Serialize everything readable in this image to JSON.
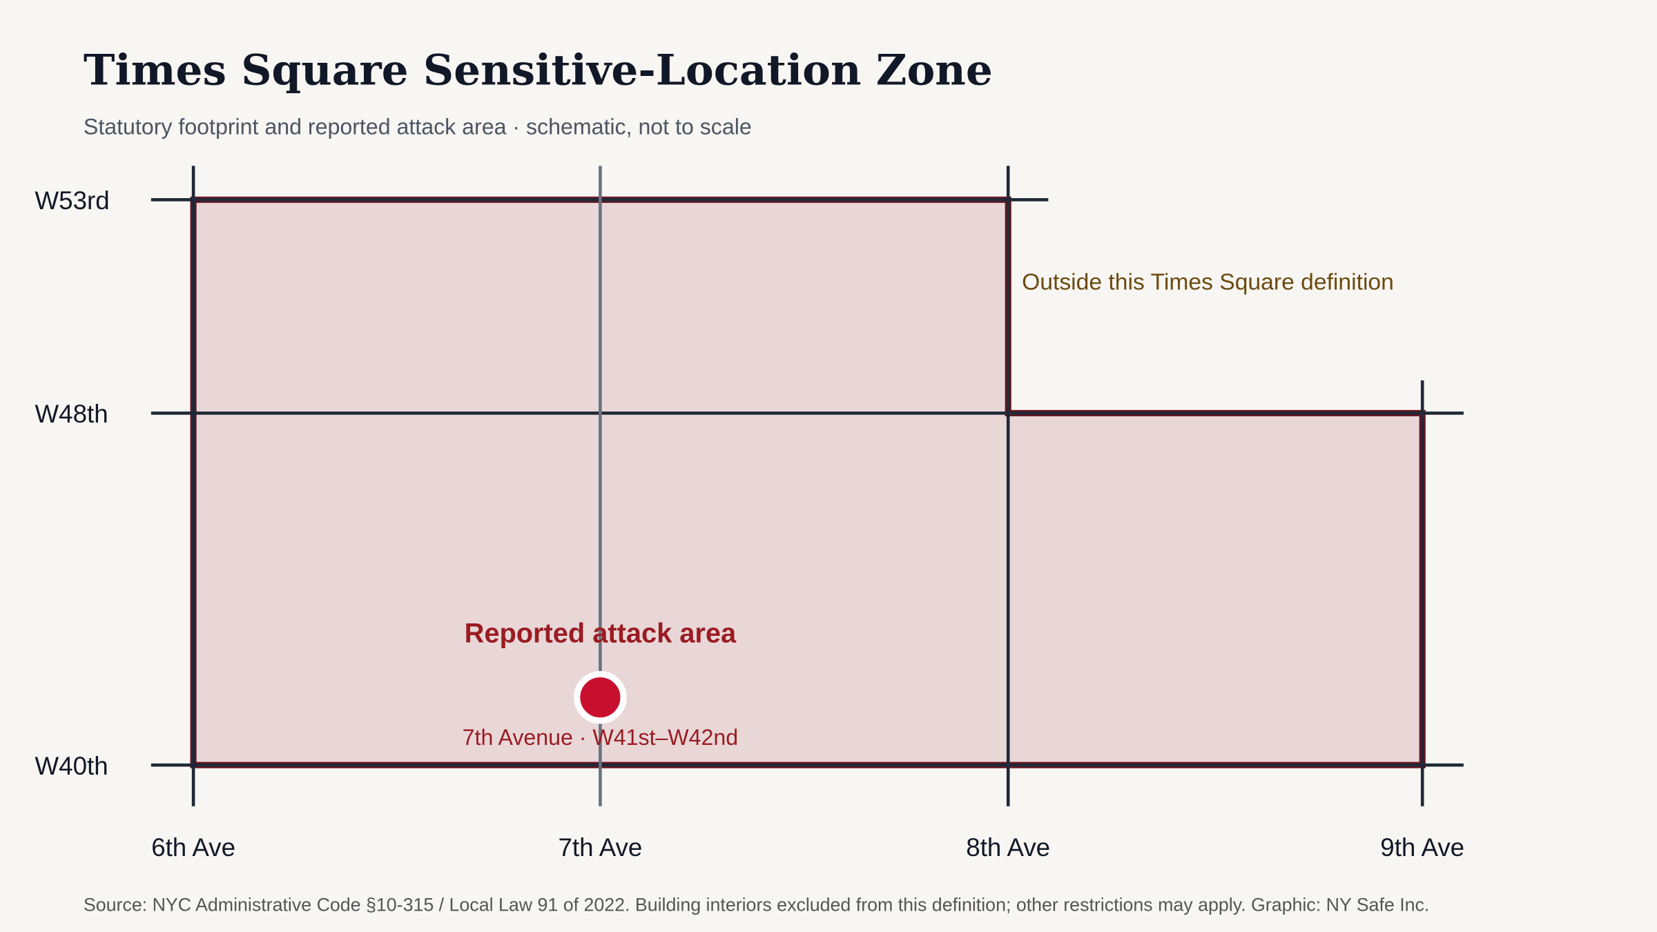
{
  "header": {
    "title": "Times Square Sensitive-Location Zone",
    "subtitle": "Statutory footprint and reported attack area · schematic, not to scale"
  },
  "avenues": [
    "6th Ave",
    "7th Ave",
    "8th Ave",
    "9th Ave"
  ],
  "streets": [
    "W53rd",
    "W48th",
    "W40th"
  ],
  "annotations": {
    "attack_label": "Reported attack area",
    "attack_location": "7th Avenue · W41st–W42nd",
    "outside_note": "Outside this Times Square definition"
  },
  "source": "Source: NYC Administrative Code §10-315 / Local Law 91 of 2022. Building interiors excluded from this definition; other restrictions may apply. Graphic: NY Safe Inc."
}
